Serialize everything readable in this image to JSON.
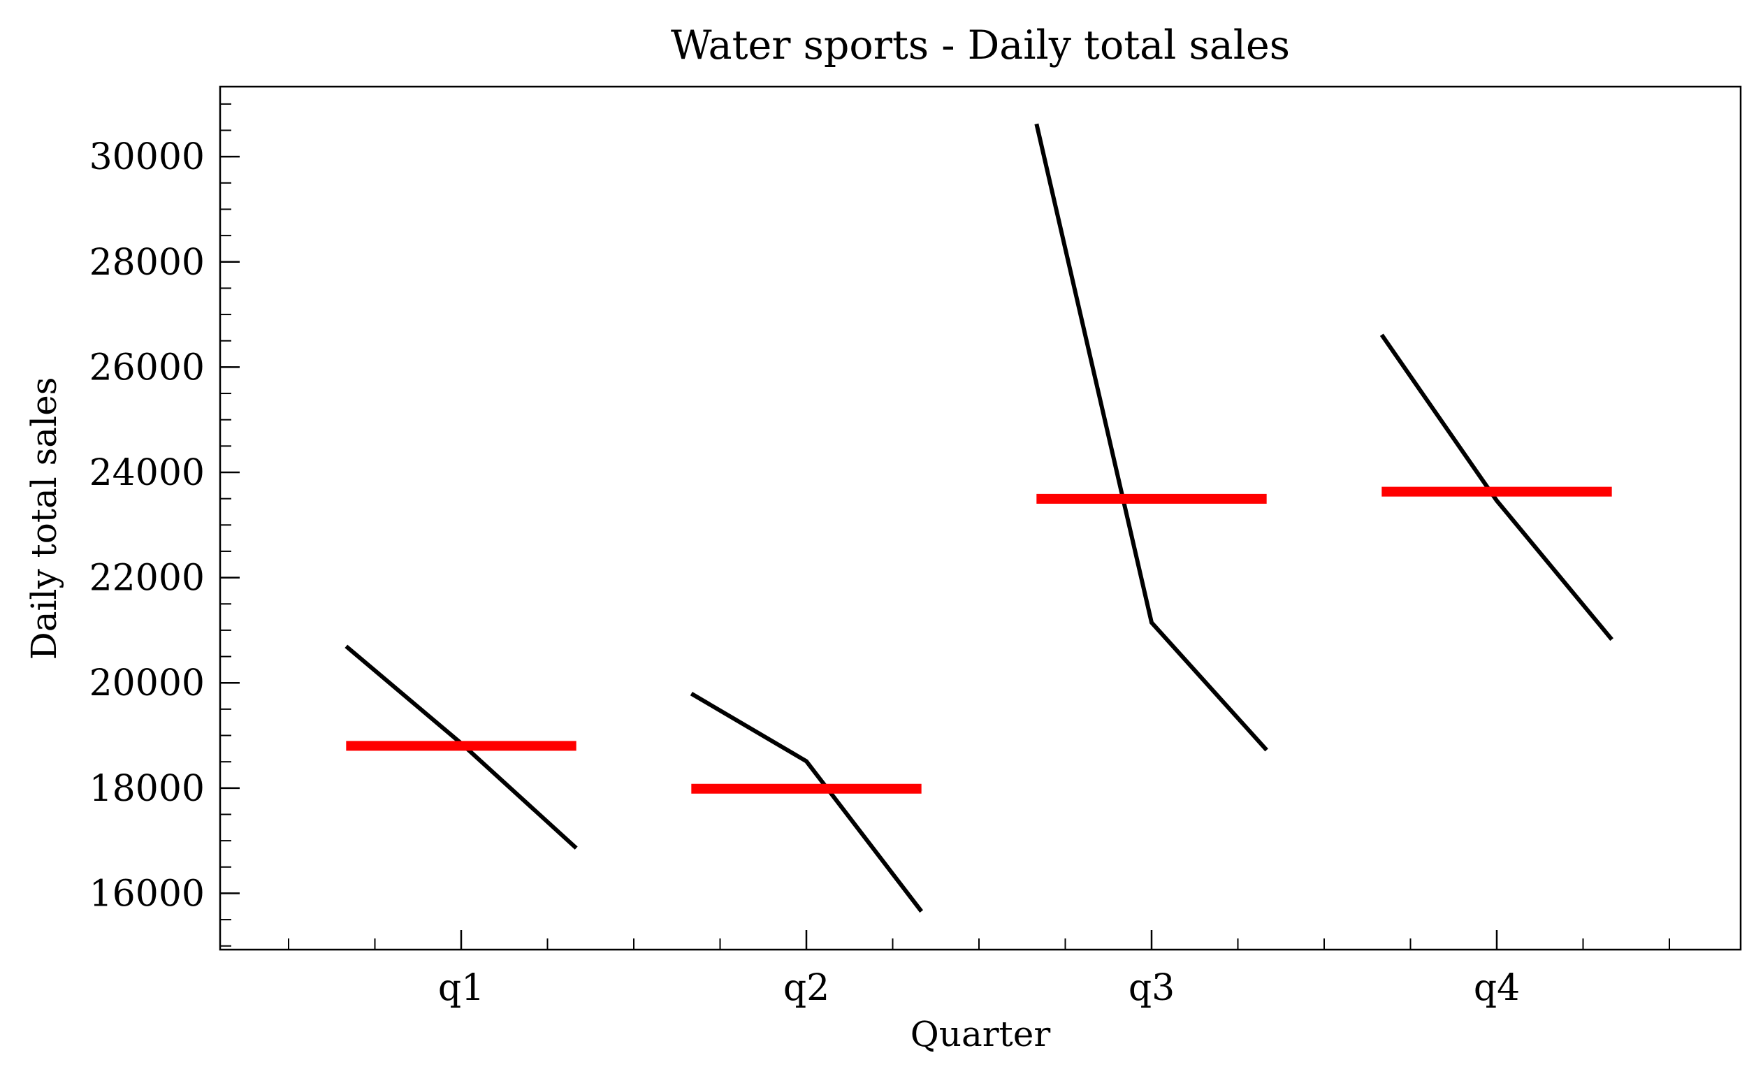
{
  "chart_data": {
    "type": "seasonal_subseries",
    "title": "Water sports - Daily total sales",
    "xlabel": "Quarter",
    "ylabel": "Daily total sales",
    "categories": [
      "q1",
      "q2",
      "q3",
      "q4"
    ],
    "values": [
      [
        20695,
        18850,
        16860
      ],
      [
        19795,
        18510,
        15657
      ],
      [
        30622,
        21146,
        18723
      ],
      [
        26613,
        23462,
        20824
      ]
    ],
    "means": [
      18802,
      17987,
      23497,
      23633
    ],
    "line_color": "#000000",
    "mean_color": "#ff0000",
    "ylim": [
      14930,
      31330
    ],
    "yticks": [
      16000,
      18000,
      20000,
      22000,
      24000,
      26000,
      28000,
      30000
    ],
    "minor_ticks": true
  }
}
